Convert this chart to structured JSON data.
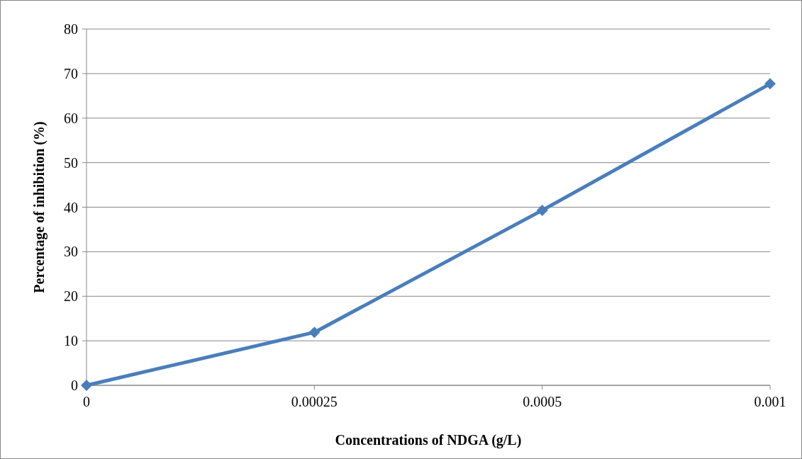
{
  "chart_data": {
    "type": "line",
    "xlabel": "Concentrations of NDGA (g/L)",
    "ylabel": "Percentage of inhibition (%)",
    "categories": [
      "0",
      "0.00025",
      "0.0005",
      "0.001"
    ],
    "series": [
      {
        "color": "#4a7ebb",
        "values": [
          0,
          11.9,
          39.3,
          67.7
        ]
      }
    ],
    "ylim": [
      0,
      80
    ],
    "yticks": [
      0,
      10,
      20,
      30,
      40,
      50,
      60,
      70,
      80
    ],
    "grid": "y",
    "marker": "diamond",
    "line_style": "solid"
  }
}
